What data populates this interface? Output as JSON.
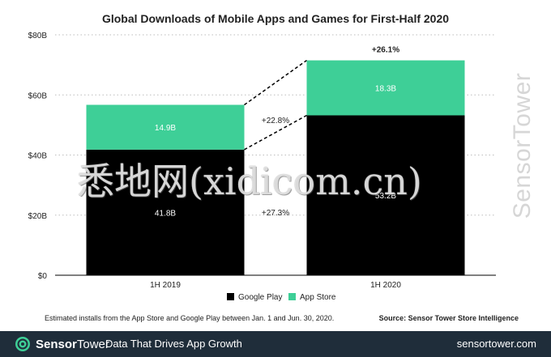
{
  "chart_data": {
    "type": "bar",
    "stacked": true,
    "title": "Global Downloads of Mobile Apps and Games for First-Half 2020",
    "categories": [
      "1H 2019",
      "1H 2020"
    ],
    "series": [
      {
        "name": "Google Play",
        "values": [
          41.8,
          53.2
        ],
        "labels": [
          "41.8B",
          "53.2B"
        ],
        "color": "#000000",
        "label_color": "#ffffff"
      },
      {
        "name": "App Store",
        "values": [
          14.9,
          18.3
        ],
        "labels": [
          "14.9B",
          "18.3B"
        ],
        "color": "#3ecf97",
        "label_color": "#ffffff"
      }
    ],
    "ylim": [
      0,
      80
    ],
    "yticks": [
      0,
      20,
      40,
      60,
      80
    ],
    "ytick_labels": [
      "$0",
      "$20B",
      "$40B",
      "$60B",
      "$80B"
    ],
    "grid": true,
    "legend": "bottom-center",
    "growth_labels": {
      "app_store": "+22.8%",
      "google_play": "+27.3%",
      "total": "+26.1%"
    },
    "note": "Estimated installs from the App Store and Google Play between Jan. 1 and Jun. 30, 2020.",
    "source": "Source: Sensor Tower Store Intelligence"
  },
  "footer": {
    "brand_bold": "Sensor",
    "brand_light": "Tower",
    "tagline": "Data That Drives App Growth",
    "site": "sensortower.com"
  },
  "watermarks": {
    "side": "SensorTower",
    "overlay": "悉地网(xidicom.cn)"
  },
  "colors": {
    "google_play": "#000000",
    "app_store": "#3ecf97",
    "footer_bg": "#1f2d3a",
    "grid": "#bdbdbd"
  }
}
